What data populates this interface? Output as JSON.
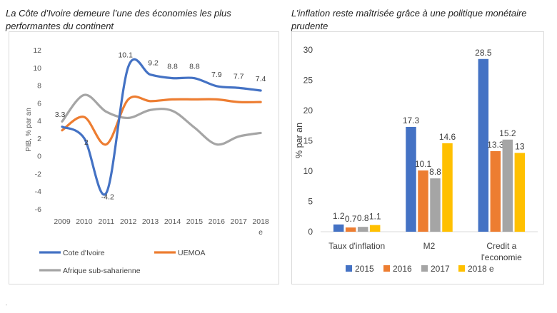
{
  "titles": {
    "left": "La Côte d’Ivoire demeure l’une des économies les plus performantes du continent",
    "right": "L’inflation reste maîtrisée grâce à une politique monétaire prudente"
  },
  "chart_data": [
    {
      "type": "line",
      "ylabel": "PIB, % par an",
      "ylim": [
        -6,
        12
      ],
      "yticks": [
        "12",
        "10",
        "8",
        "6",
        "4",
        "2",
        "0",
        "-2",
        "-4",
        "-6"
      ],
      "categories": [
        "2009",
        "2010",
        "2011",
        "2012",
        "2013",
        "2014",
        "2015",
        "2016",
        "2017",
        "2018 e"
      ],
      "grid": false,
      "legend": "bottom",
      "series": [
        {
          "name": "Cote d'Ivoire",
          "color": "#4472C4",
          "values": [
            3.3,
            2.0,
            -4.2,
            10.1,
            9.2,
            8.8,
            8.8,
            7.9,
            7.7,
            7.4
          ],
          "labels": [
            "3.3",
            "2",
            "-4.2",
            "10.1",
            "9.2",
            "8.8",
            "8.8",
            "7.9",
            "7.7",
            "7.4"
          ]
        },
        {
          "name": "UEMOA",
          "color": "#ED7D31",
          "values": [
            2.9,
            4.4,
            1.3,
            6.4,
            6.2,
            6.4,
            6.4,
            6.4,
            6.1,
            6.1
          ]
        },
        {
          "name": "Afrique sub-saharienne",
          "color": "#A5A5A5",
          "values": [
            3.9,
            6.9,
            5.0,
            4.3,
            5.2,
            5.1,
            3.2,
            1.3,
            2.2,
            2.6
          ]
        }
      ]
    },
    {
      "type": "bar",
      "ylabel": "% par an",
      "ylim": [
        0,
        30
      ],
      "yticks": [
        "30",
        "25",
        "20",
        "15",
        "10",
        "5",
        "0"
      ],
      "categories": [
        [
          "Taux d'inflation"
        ],
        [
          "M2"
        ],
        [
          "Credit a",
          "l'economie"
        ]
      ],
      "grid": false,
      "legend": "bottom",
      "series": [
        {
          "name": "2015",
          "color": "#4472C4",
          "values": [
            1.2,
            17.3,
            28.5
          ],
          "labels": [
            "1.2",
            "17.3",
            "28.5"
          ]
        },
        {
          "name": "2016",
          "color": "#ED7D31",
          "values": [
            0.7,
            10.1,
            13.3
          ],
          "labels": [
            "0.7",
            "10.1",
            "13.3"
          ]
        },
        {
          "name": "2017",
          "color": "#A5A5A5",
          "values": [
            0.8,
            8.8,
            15.2
          ],
          "labels": [
            "0.8",
            "8.8",
            "15.2"
          ]
        },
        {
          "name": "2018 e",
          "color": "#FFC000",
          "values": [
            1.1,
            14.6,
            13.0
          ],
          "labels": [
            "1.1",
            "14.6",
            "13"
          ]
        }
      ]
    }
  ]
}
